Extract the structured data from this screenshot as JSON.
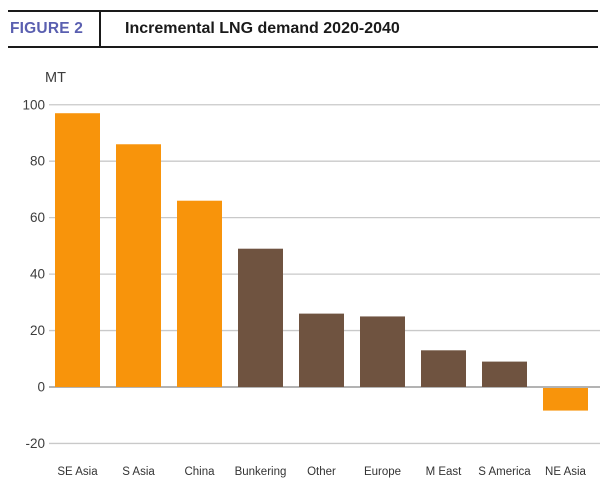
{
  "header": {
    "figure_label": "FIGURE 2",
    "title": "Incremental LNG demand 2020-2040"
  },
  "chart_data": {
    "type": "bar",
    "title": "Incremental LNG demand 2020-2040",
    "unit_label": "MT",
    "ylabel": "MT",
    "xlabel": "",
    "categories": [
      "SE Asia",
      "S Asia",
      "China",
      "Bunkering",
      "Other",
      "Europe",
      "M East",
      "S America",
      "NE Asia"
    ],
    "values": [
      97,
      86,
      66,
      49,
      26,
      25,
      13,
      9,
      -8
    ],
    "bar_colors": [
      "orange",
      "orange",
      "orange",
      "brown",
      "brown",
      "brown",
      "brown",
      "brown",
      "orange"
    ],
    "yticks": [
      100,
      80,
      60,
      40,
      20,
      0,
      -20
    ],
    "ylim": [
      -20,
      100
    ],
    "grid": true,
    "legend": false,
    "palette": {
      "orange": "#F8940B",
      "brown": "#6F5340"
    },
    "colors": {
      "figure_label_accent": "#5A5FB0",
      "title_text": "#1A1A1A",
      "gridline": "#C9C9C9",
      "zero_line": "#B3B3B3",
      "axis_text": "#3D3D3D",
      "category_text": "#333333",
      "header_rule": "#1A1A1A"
    }
  }
}
